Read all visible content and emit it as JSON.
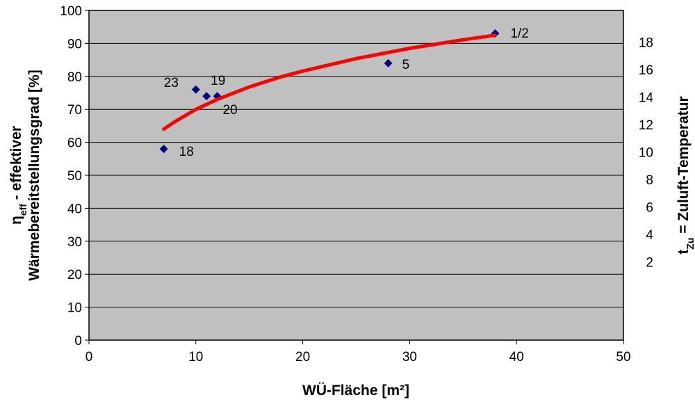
{
  "chart_data": {
    "type": "scatter",
    "xlabel": "WÜ-Fläche [m²]",
    "ylabel": [
      [
        {
          "text": "η"
        },
        {
          "text": "eff",
          "sub": true
        },
        {
          "text": " - effektiver"
        }
      ],
      [
        {
          "text": "Wärmebereitstellungsgrad  [%]"
        }
      ]
    ],
    "y2label": [
      {
        "text": "t"
      },
      {
        "text": "Zu",
        "sub": true
      },
      {
        "text": " = Zuluft-Temperatur"
      }
    ],
    "xlim": [
      0,
      50
    ],
    "xticks": [
      0,
      10,
      20,
      30,
      40,
      50
    ],
    "ylim": [
      0,
      100
    ],
    "yticks": [
      0,
      10,
      20,
      30,
      40,
      50,
      60,
      70,
      80,
      90,
      100
    ],
    "y2lim": [
      -3.7,
      20.3
    ],
    "y2ticks": [
      2,
      4,
      6,
      8,
      10,
      12,
      14,
      16,
      18
    ],
    "grid": true,
    "series": [
      {
        "color": "#000080",
        "marker": "diamond",
        "x": [
          7,
          10,
          11,
          12,
          28,
          38
        ],
        "values": [
          58,
          76,
          74,
          74,
          84,
          93
        ],
        "labels": [
          "18",
          "23",
          "19",
          "20",
          "5",
          "1/2"
        ]
      },
      {
        "color": "#ff0000",
        "line": true,
        "x": [
          7,
          8,
          10,
          12,
          15,
          18,
          20,
          25,
          30,
          35,
          38
        ],
        "values": [
          64.0,
          66.2,
          70.0,
          73.0,
          76.8,
          79.9,
          81.6,
          85.4,
          88.5,
          91.1,
          92.5
        ]
      }
    ]
  }
}
